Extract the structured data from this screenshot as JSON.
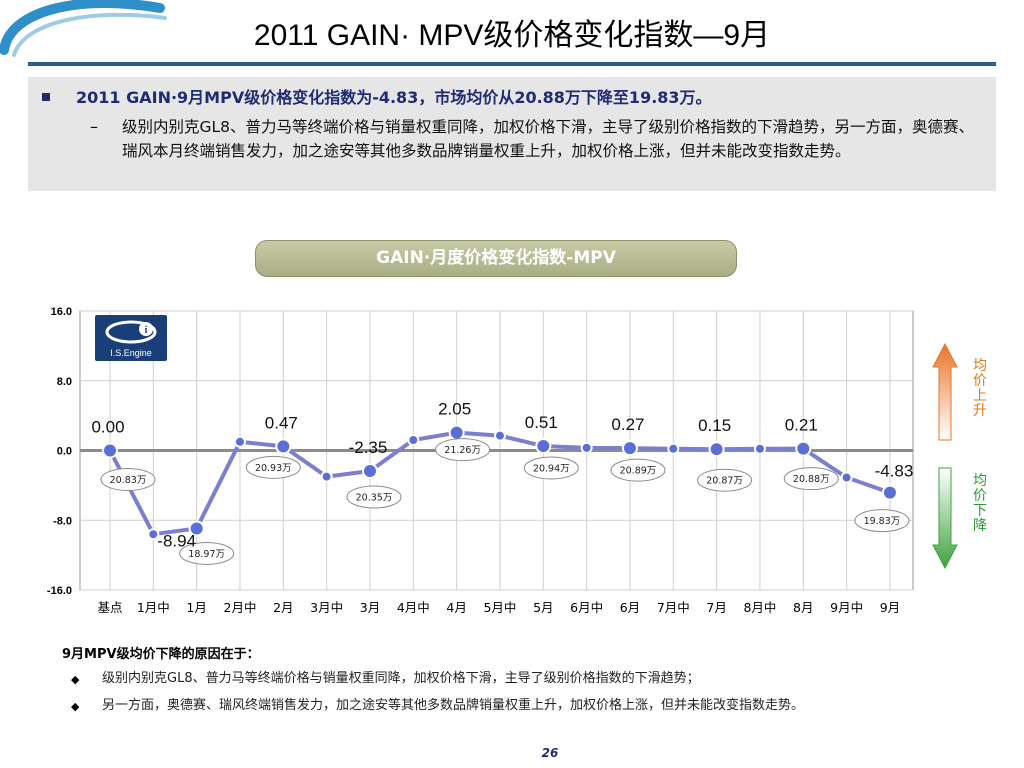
{
  "page_title": "2011 GAIN· MPV级价格变化指数—9月",
  "summary": {
    "headline": "2011 GAIN·9月MPV级价格变化指数为-4.83，市场均价从20.88万下降至19.83万。",
    "detail": "级别内别克GL8、普力马等终端价格与销量权重同降，加权价格下滑，主导了级别价格指数的下滑趋势，另一方面，奥德赛、瑞风本月终端销售发力，加之途安等其他多数品牌销量权重上升，加权价格上涨，但并未能改变指数走势。"
  },
  "chart_title": "GAIN·月度价格变化指数-MPV",
  "logo_text": "I.S.Engine",
  "side_labels": {
    "up": "均价上升",
    "down": "均价下降"
  },
  "chart_data": {
    "type": "line",
    "categories": [
      "基点",
      "1月中",
      "1月",
      "2月中",
      "2月",
      "3月中",
      "3月",
      "4月中",
      "4月",
      "5月中",
      "5月",
      "6月中",
      "6月",
      "7月中",
      "7月",
      "8月中",
      "8月",
      "9月中",
      "9月"
    ],
    "series": [
      {
        "values": [
          0.0,
          -9.6,
          -8.94,
          1.0,
          0.47,
          -3.0,
          -2.35,
          1.2,
          2.05,
          1.7,
          0.51,
          0.3,
          0.27,
          0.2,
          0.15,
          0.2,
          0.21,
          -3.1,
          -4.83
        ]
      }
    ],
    "ylim": [
      -16,
      16
    ],
    "yticks": [
      "16.0",
      "8.0",
      "0.0",
      "-8.0",
      "-16.0"
    ],
    "point_labels": [
      {
        "index": 0,
        "text": "0.00"
      },
      {
        "index": 2,
        "text": "-8.94"
      },
      {
        "index": 4,
        "text": "0.47"
      },
      {
        "index": 6,
        "text": "-2.35"
      },
      {
        "index": 8,
        "text": "2.05"
      },
      {
        "index": 10,
        "text": "0.51"
      },
      {
        "index": 12,
        "text": "0.27"
      },
      {
        "index": 14,
        "text": "0.15"
      },
      {
        "index": 16,
        "text": "0.21"
      },
      {
        "index": 18,
        "text": "-4.83"
      }
    ],
    "price_callouts": [
      {
        "index": 0,
        "text": "20.83万"
      },
      {
        "index": 2,
        "text": "18.97万"
      },
      {
        "index": 4,
        "text": "20.93万"
      },
      {
        "index": 6,
        "text": "20.35万"
      },
      {
        "index": 8,
        "text": "21.26万"
      },
      {
        "index": 10,
        "text": "20.94万"
      },
      {
        "index": 12,
        "text": "20.89万"
      },
      {
        "index": 14,
        "text": "20.87万"
      },
      {
        "index": 16,
        "text": "20.88万"
      },
      {
        "index": 18,
        "text": "19.83万"
      }
    ],
    "grid": true,
    "line_color": "#7b7fcf",
    "marker_color": "#5a6fd6"
  },
  "reasons": {
    "title": "9月MPV级均价下降的原因在于：",
    "items": [
      "级别内别克GL8、普力马等终端价格与销量权重同降，加权价格下滑，主导了级别价格指数的下滑趋势；",
      "另一方面，奥德赛、瑞风终端销售发力，加之途安等其他多数品牌销量权重上升，加权价格上涨，但并未能改变指数走势。"
    ]
  },
  "page_number": "26"
}
